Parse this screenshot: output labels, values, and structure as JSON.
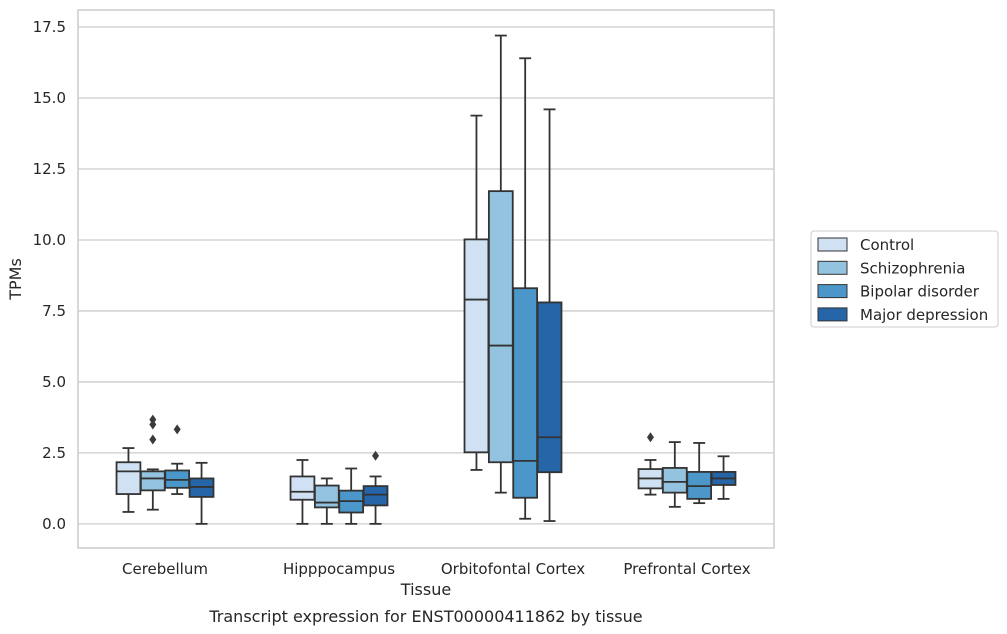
{
  "caption": "Transcript expression for ENST00000411862 by tissue",
  "chart_data": {
    "type": "box",
    "xlabel": "Tissue",
    "ylabel": "TPMs",
    "ylim": [
      -0.85,
      18.1
    ],
    "yticks": [
      0.0,
      2.5,
      5.0,
      7.5,
      10.0,
      12.5,
      15.0,
      17.5
    ],
    "ytick_labels": [
      "0.0",
      "2.5",
      "5.0",
      "7.5",
      "10.0",
      "12.5",
      "15.0",
      "17.5"
    ],
    "grid": "horizontal",
    "legend_position": "right",
    "categories": [
      "Cerebellum",
      "Hipppocampus",
      "Orbitofontal Cortex",
      "Prefrontal Cortex"
    ],
    "series": [
      {
        "name": "Control",
        "color": "#cfe1f2",
        "boxes": [
          {
            "whislo": 0.42,
            "q1": 1.05,
            "med": 1.85,
            "q3": 2.17,
            "whishi": 2.67,
            "fliers": []
          },
          {
            "whislo": 0.0,
            "q1": 0.85,
            "med": 1.13,
            "q3": 1.67,
            "whishi": 2.25,
            "fliers": []
          },
          {
            "whislo": 1.9,
            "q1": 2.52,
            "med": 7.9,
            "q3": 10.02,
            "whishi": 14.38,
            "fliers": []
          },
          {
            "whislo": 1.03,
            "q1": 1.25,
            "med": 1.6,
            "q3": 1.93,
            "whishi": 2.25,
            "fliers": [
              3.05
            ]
          }
        ]
      },
      {
        "name": "Schizophrenia",
        "color": "#93c3df",
        "boxes": [
          {
            "whislo": 0.5,
            "q1": 1.18,
            "med": 1.6,
            "q3": 1.85,
            "whishi": 1.92,
            "fliers": [
              2.97,
              3.5,
              3.67
            ]
          },
          {
            "whislo": 0.0,
            "q1": 0.58,
            "med": 0.75,
            "q3": 1.35,
            "whishi": 1.6,
            "fliers": []
          },
          {
            "whislo": 1.1,
            "q1": 2.17,
            "med": 6.28,
            "q3": 11.72,
            "whishi": 17.2,
            "fliers": []
          },
          {
            "whislo": 0.6,
            "q1": 1.1,
            "med": 1.48,
            "q3": 1.97,
            "whishi": 2.88,
            "fliers": []
          }
        ]
      },
      {
        "name": "Bipolar disorder",
        "color": "#4b97c9",
        "boxes": [
          {
            "whislo": 1.05,
            "q1": 1.27,
            "med": 1.55,
            "q3": 1.88,
            "whishi": 2.12,
            "fliers": [
              3.33
            ]
          },
          {
            "whislo": 0.0,
            "q1": 0.4,
            "med": 0.8,
            "q3": 1.17,
            "whishi": 1.95,
            "fliers": []
          },
          {
            "whislo": 0.18,
            "q1": 0.92,
            "med": 2.22,
            "q3": 8.3,
            "whishi": 16.4,
            "fliers": []
          },
          {
            "whislo": 0.73,
            "q1": 0.88,
            "med": 1.33,
            "q3": 1.83,
            "whishi": 2.85,
            "fliers": []
          }
        ]
      },
      {
        "name": "Major depression",
        "color": "#2565a8",
        "boxes": [
          {
            "whislo": 0.0,
            "q1": 0.95,
            "med": 1.3,
            "q3": 1.6,
            "whishi": 2.15,
            "fliers": []
          },
          {
            "whislo": 0.0,
            "q1": 0.65,
            "med": 1.03,
            "q3": 1.33,
            "whishi": 1.67,
            "fliers": [
              2.4
            ]
          },
          {
            "whislo": 0.1,
            "q1": 1.82,
            "med": 3.05,
            "q3": 7.8,
            "whishi": 14.6,
            "fliers": []
          },
          {
            "whislo": 0.88,
            "q1": 1.37,
            "med": 1.6,
            "q3": 1.83,
            "whishi": 2.38,
            "fliers": []
          }
        ]
      }
    ]
  }
}
